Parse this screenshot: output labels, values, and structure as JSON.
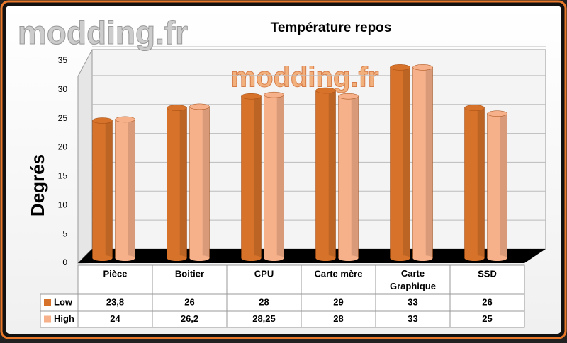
{
  "chart_data": {
    "type": "bar",
    "title": "Température repos",
    "y_label": "Degrés",
    "watermark": "modding.fr",
    "categories": [
      "Pièce",
      "Boitier",
      "CPU",
      "Carte mère",
      "Carte Graphique",
      "SSD"
    ],
    "series": [
      {
        "name": "Low",
        "color": "#d7722a",
        "values": [
          23.8,
          26,
          28,
          29,
          33,
          26
        ],
        "value_labels": [
          "23,8",
          "26",
          "28",
          "29",
          "33",
          "26"
        ]
      },
      {
        "name": "High",
        "color": "#f6b08a",
        "values": [
          24,
          26.2,
          28.25,
          28,
          33,
          25
        ],
        "value_labels": [
          "24",
          "26,2",
          "28,25",
          "28",
          "33",
          "25"
        ]
      }
    ],
    "ylim": [
      0,
      35
    ],
    "yticks": [
      0,
      5,
      10,
      15,
      20,
      25,
      30,
      35
    ],
    "grid": true
  }
}
